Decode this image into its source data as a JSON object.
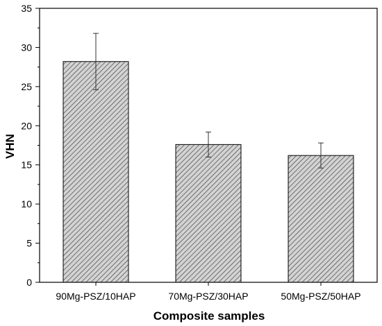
{
  "chart_data": {
    "type": "bar",
    "title": "",
    "xlabel": "Composite samples",
    "ylabel": "VHN",
    "categories": [
      "90Mg-PSZ/10HAP",
      "70Mg-PSZ/30HAP",
      "50Mg-PSZ/50HAP"
    ],
    "values": [
      28.2,
      17.6,
      16.2
    ],
    "error": [
      3.6,
      1.6,
      1.6
    ],
    "ylim": [
      0,
      35
    ],
    "yticks": [
      "0",
      "5",
      "10",
      "15",
      "20",
      "25",
      "30",
      "35"
    ],
    "grid": false,
    "legend": "none",
    "bar_fill": "#d3d3d3",
    "hatch_color": "#3a3a3a",
    "axis_color": "#000000"
  }
}
